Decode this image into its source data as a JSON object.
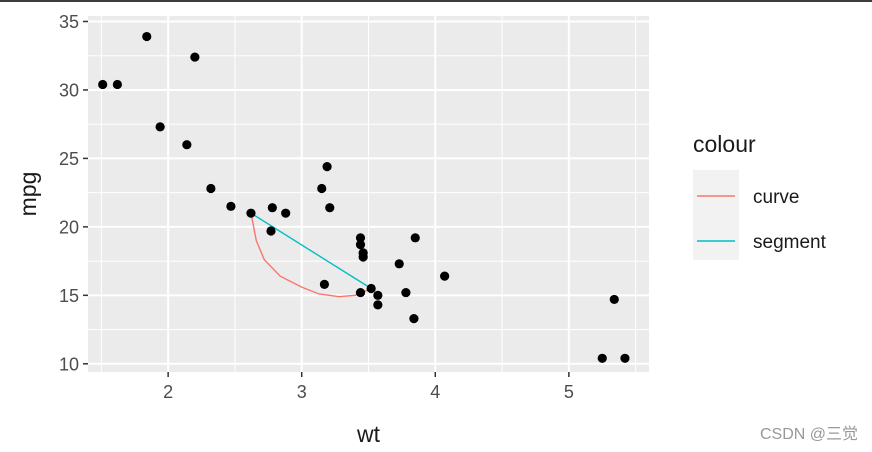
{
  "chart_data": {
    "type": "scatter",
    "xlabel": "wt",
    "ylabel": "mpg",
    "xlim": [
      1.4,
      5.6
    ],
    "ylim": [
      9.4,
      35.4
    ],
    "x_ticks": [
      2,
      3,
      4,
      5
    ],
    "y_ticks": [
      10,
      15,
      20,
      25,
      30,
      35
    ],
    "grid": true,
    "panel_background": "#ebebeb",
    "points": [
      {
        "x": 1.51,
        "y": 30.4
      },
      {
        "x": 1.62,
        "y": 30.4
      },
      {
        "x": 1.84,
        "y": 33.9
      },
      {
        "x": 1.94,
        "y": 27.3
      },
      {
        "x": 2.14,
        "y": 26.0
      },
      {
        "x": 2.2,
        "y": 32.4
      },
      {
        "x": 2.32,
        "y": 22.8
      },
      {
        "x": 2.47,
        "y": 21.5
      },
      {
        "x": 2.62,
        "y": 21.0
      },
      {
        "x": 2.77,
        "y": 19.7
      },
      {
        "x": 2.78,
        "y": 21.4
      },
      {
        "x": 2.88,
        "y": 21.0
      },
      {
        "x": 3.15,
        "y": 22.8
      },
      {
        "x": 3.17,
        "y": 15.8
      },
      {
        "x": 3.19,
        "y": 24.4
      },
      {
        "x": 3.21,
        "y": 21.4
      },
      {
        "x": 3.44,
        "y": 15.2
      },
      {
        "x": 3.44,
        "y": 18.7
      },
      {
        "x": 3.44,
        "y": 19.2
      },
      {
        "x": 3.46,
        "y": 18.1
      },
      {
        "x": 3.46,
        "y": 17.8
      },
      {
        "x": 3.52,
        "y": 15.5
      },
      {
        "x": 3.57,
        "y": 14.3
      },
      {
        "x": 3.57,
        "y": 15.0
      },
      {
        "x": 3.73,
        "y": 17.3
      },
      {
        "x": 3.78,
        "y": 15.2
      },
      {
        "x": 3.84,
        "y": 13.3
      },
      {
        "x": 3.85,
        "y": 19.2
      },
      {
        "x": 4.07,
        "y": 16.4
      },
      {
        "x": 5.25,
        "y": 10.4
      },
      {
        "x": 5.34,
        "y": 14.7
      },
      {
        "x": 5.42,
        "y": 10.4
      }
    ],
    "series": [
      {
        "name": "curve",
        "color": "#f8766d",
        "x": [
          2.62,
          2.66,
          2.72,
          2.84,
          3.0,
          3.13,
          3.28,
          3.4,
          3.52
        ],
        "y": [
          21.0,
          19.0,
          17.6,
          16.4,
          15.6,
          15.1,
          14.9,
          15.0,
          15.5
        ]
      },
      {
        "name": "segment",
        "color": "#00bfc4",
        "x": [
          2.62,
          3.52
        ],
        "y": [
          21.0,
          15.5
        ]
      }
    ],
    "legend": {
      "title": "colour",
      "position": "right",
      "entries": [
        {
          "label": "curve",
          "color": "#f8766d"
        },
        {
          "label": "segment",
          "color": "#00bfc4"
        }
      ]
    }
  },
  "watermark": "CSDN @三觉"
}
